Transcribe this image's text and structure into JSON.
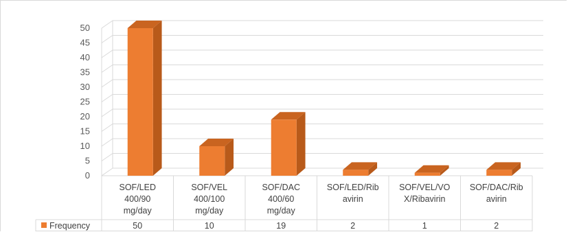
{
  "chart_data": {
    "type": "bar",
    "style": "3d-column-with-data-table",
    "categories": [
      [
        "SOF/LED",
        "400/90",
        "mg/day"
      ],
      [
        "SOF/VEL",
        "400/100",
        "mg/day"
      ],
      [
        "SOF/DAC",
        "400/60",
        "mg/day"
      ],
      [
        "SOF/LED/Rib",
        "avirin"
      ],
      [
        "SOF/VEL/VO",
        "X/Ribavirin"
      ],
      [
        "SOF/DAC/Rib",
        "avirin"
      ]
    ],
    "series": [
      {
        "name": "Frequency",
        "values": [
          50,
          10,
          19,
          2,
          1,
          2
        ]
      }
    ],
    "yticks": [
      "0",
      "5",
      "10",
      "15",
      "20",
      "25",
      "30",
      "35",
      "40",
      "45",
      "50"
    ],
    "ylim": [
      0,
      50
    ],
    "grid": true,
    "legend": "data-table-left",
    "colors": {
      "bar_front": "#ed7d31",
      "bar_side": "#b85a1a",
      "bar_top": "#c96420",
      "grid": "#d9d9d9",
      "text": "#595959"
    }
  }
}
